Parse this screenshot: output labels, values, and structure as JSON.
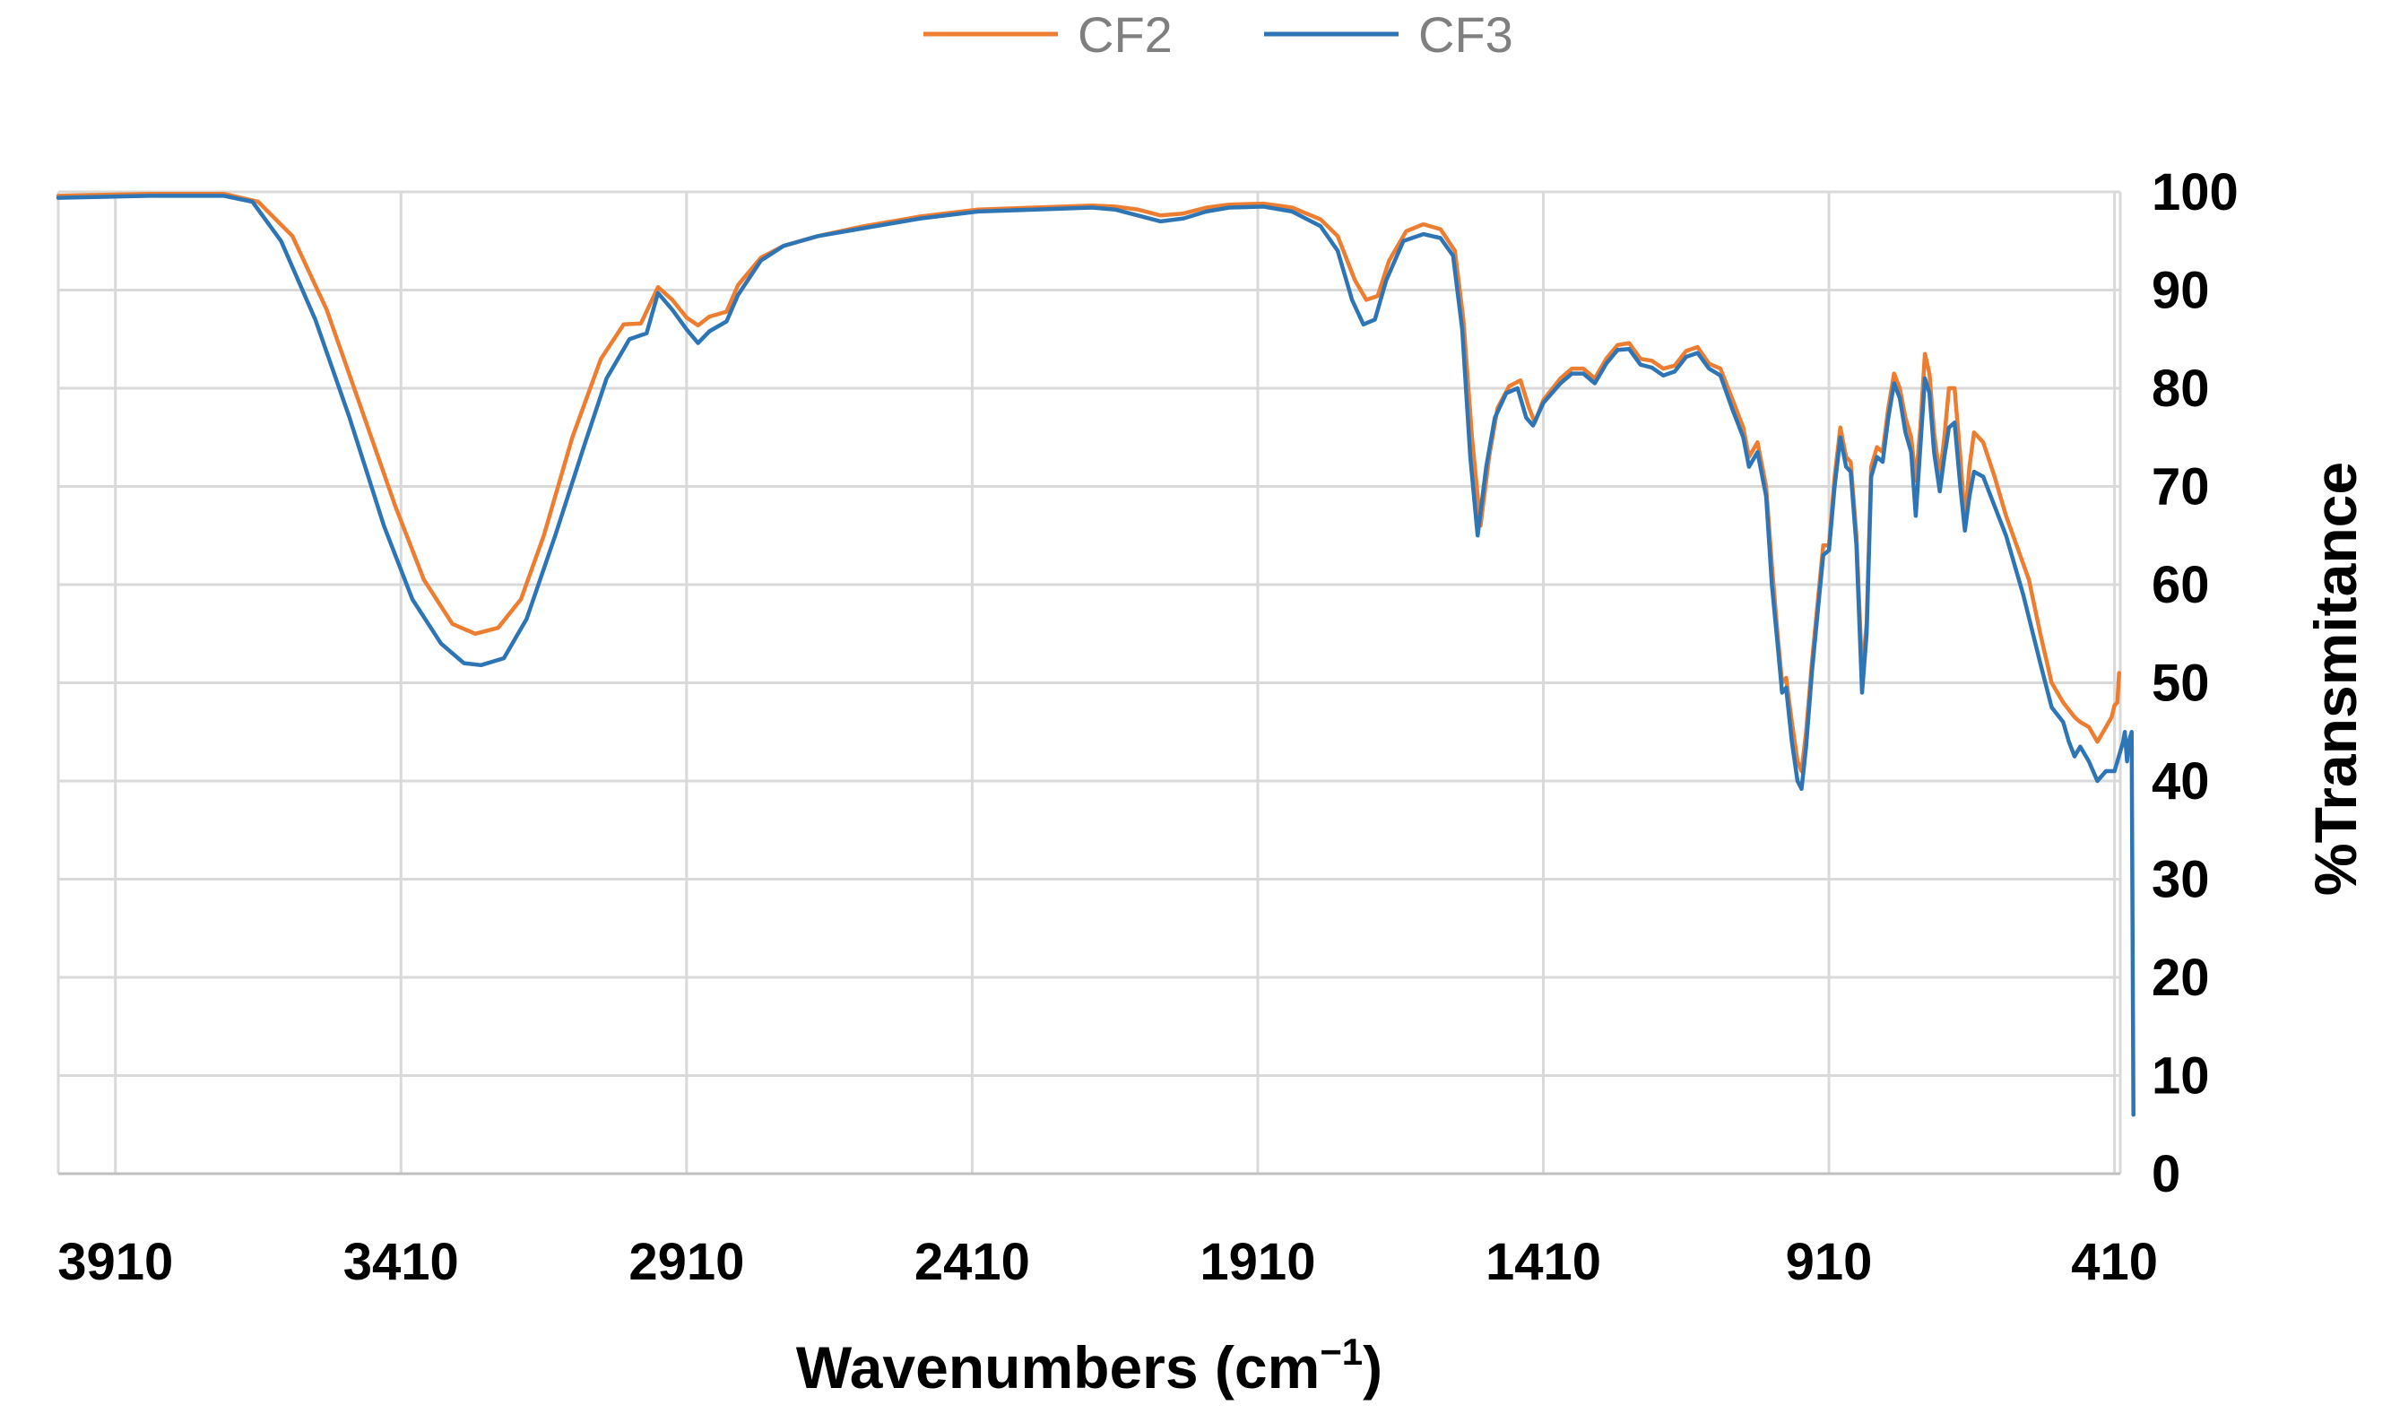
{
  "chart_data": {
    "type": "line",
    "title": "",
    "xlabel": "Wavenumbers (cm",
    "xlabel_sup": "−1",
    "xlabel_close": ")",
    "ylabel": "%Transmitance",
    "xlim": [
      4010,
      400
    ],
    "x_reversed": true,
    "ylim": [
      0,
      100
    ],
    "grid": true,
    "legend_position": "top",
    "x_ticks": [
      3910,
      3410,
      2910,
      2410,
      1910,
      1410,
      910,
      410
    ],
    "y_ticks": [
      0,
      10,
      20,
      30,
      40,
      50,
      60,
      70,
      80,
      90,
      100
    ],
    "series": [
      {
        "name": "CF2",
        "color": "#ed7d31",
        "points": [
          [
            4010,
            99.6
          ],
          [
            3850,
            99.8
          ],
          [
            3720,
            99.8
          ],
          [
            3660,
            99.0
          ],
          [
            3600,
            95.5
          ],
          [
            3540,
            88
          ],
          [
            3480,
            78
          ],
          [
            3420,
            68
          ],
          [
            3370,
            60.5
          ],
          [
            3320,
            56
          ],
          [
            3280,
            55
          ],
          [
            3240,
            55.6
          ],
          [
            3200,
            58.5
          ],
          [
            3160,
            65
          ],
          [
            3110,
            75
          ],
          [
            3060,
            83
          ],
          [
            3020,
            86.5
          ],
          [
            2990,
            86.6
          ],
          [
            2960,
            90.3
          ],
          [
            2935,
            89
          ],
          [
            2910,
            87.2
          ],
          [
            2890,
            86.4
          ],
          [
            2870,
            87.3
          ],
          [
            2840,
            87.8
          ],
          [
            2820,
            90.5
          ],
          [
            2780,
            93.3
          ],
          [
            2740,
            94.5
          ],
          [
            2680,
            95.5
          ],
          [
            2600,
            96.5
          ],
          [
            2500,
            97.5
          ],
          [
            2400,
            98.2
          ],
          [
            2300,
            98.4
          ],
          [
            2200,
            98.6
          ],
          [
            2160,
            98.5
          ],
          [
            2120,
            98.2
          ],
          [
            2080,
            97.6
          ],
          [
            2040,
            97.8
          ],
          [
            2000,
            98.4
          ],
          [
            1960,
            98.7
          ],
          [
            1900,
            98.8
          ],
          [
            1850,
            98.4
          ],
          [
            1800,
            97.2
          ],
          [
            1770,
            95.5
          ],
          [
            1740,
            91
          ],
          [
            1720,
            89
          ],
          [
            1700,
            89.4
          ],
          [
            1680,
            93
          ],
          [
            1650,
            96
          ],
          [
            1620,
            96.7
          ],
          [
            1590,
            96.2
          ],
          [
            1565,
            94
          ],
          [
            1550,
            87
          ],
          [
            1535,
            75
          ],
          [
            1520,
            66
          ],
          [
            1505,
            73
          ],
          [
            1490,
            78
          ],
          [
            1470,
            80.2
          ],
          [
            1450,
            80.8
          ],
          [
            1435,
            78
          ],
          [
            1425,
            76.5
          ],
          [
            1410,
            78.8
          ],
          [
            1380,
            81
          ],
          [
            1360,
            82
          ],
          [
            1340,
            82
          ],
          [
            1320,
            81
          ],
          [
            1300,
            83
          ],
          [
            1280,
            84.4
          ],
          [
            1260,
            84.6
          ],
          [
            1240,
            83
          ],
          [
            1220,
            82.8
          ],
          [
            1200,
            82
          ],
          [
            1180,
            82.3
          ],
          [
            1160,
            83.8
          ],
          [
            1140,
            84.2
          ],
          [
            1120,
            82.5
          ],
          [
            1100,
            82
          ],
          [
            1080,
            79
          ],
          [
            1060,
            76
          ],
          [
            1050,
            73
          ],
          [
            1035,
            74.5
          ],
          [
            1020,
            70
          ],
          [
            1010,
            62
          ],
          [
            1000,
            55
          ],
          [
            992,
            50
          ],
          [
            985,
            50.5
          ],
          [
            975,
            46
          ],
          [
            965,
            42
          ],
          [
            958,
            41
          ],
          [
            950,
            45
          ],
          [
            940,
            52
          ],
          [
            930,
            58
          ],
          [
            920,
            64
          ],
          [
            910,
            64
          ],
          [
            900,
            71
          ],
          [
            890,
            76
          ],
          [
            880,
            73
          ],
          [
            872,
            72.5
          ],
          [
            862,
            65
          ],
          [
            852,
            51
          ],
          [
            844,
            56
          ],
          [
            836,
            72
          ],
          [
            826,
            74
          ],
          [
            816,
            73.5
          ],
          [
            806,
            78
          ],
          [
            796,
            81.5
          ],
          [
            786,
            80
          ],
          [
            776,
            77
          ],
          [
            766,
            75
          ],
          [
            758,
            70.6
          ],
          [
            750,
            76
          ],
          [
            742,
            83.5
          ],
          [
            734,
            81.5
          ],
          [
            726,
            75.5
          ],
          [
            716,
            71
          ],
          [
            708,
            75
          ],
          [
            700,
            80
          ],
          [
            690,
            80
          ],
          [
            680,
            73
          ],
          [
            672,
            66.5
          ],
          [
            664,
            72
          ],
          [
            656,
            75.5
          ],
          [
            640,
            74.5
          ],
          [
            620,
            71
          ],
          [
            600,
            67
          ],
          [
            560,
            60.5
          ],
          [
            540,
            55
          ],
          [
            520,
            50
          ],
          [
            500,
            48
          ],
          [
            480,
            46.5
          ],
          [
            470,
            46
          ],
          [
            455,
            45.5
          ],
          [
            440,
            44
          ],
          [
            425,
            45.5
          ],
          [
            415,
            46.5
          ],
          [
            410,
            47.7
          ],
          [
            405,
            48
          ],
          [
            402,
            51
          ]
        ]
      },
      {
        "name": "CF3",
        "color": "#2e75b6",
        "points": [
          [
            4010,
            99.4
          ],
          [
            3850,
            99.6
          ],
          [
            3720,
            99.6
          ],
          [
            3670,
            99
          ],
          [
            3620,
            95
          ],
          [
            3560,
            87
          ],
          [
            3500,
            77
          ],
          [
            3440,
            66
          ],
          [
            3390,
            58.5
          ],
          [
            3340,
            54
          ],
          [
            3300,
            52
          ],
          [
            3270,
            51.8
          ],
          [
            3230,
            52.5
          ],
          [
            3190,
            56.5
          ],
          [
            3140,
            65
          ],
          [
            3090,
            74
          ],
          [
            3050,
            81
          ],
          [
            3010,
            85
          ],
          [
            2980,
            85.6
          ],
          [
            2960,
            89.7
          ],
          [
            2935,
            88
          ],
          [
            2910,
            86
          ],
          [
            2890,
            84.6
          ],
          [
            2870,
            85.8
          ],
          [
            2840,
            86.8
          ],
          [
            2820,
            89.5
          ],
          [
            2780,
            93
          ],
          [
            2740,
            94.5
          ],
          [
            2680,
            95.5
          ],
          [
            2600,
            96.3
          ],
          [
            2500,
            97.3
          ],
          [
            2400,
            98.0
          ],
          [
            2300,
            98.2
          ],
          [
            2200,
            98.4
          ],
          [
            2160,
            98.2
          ],
          [
            2120,
            97.6
          ],
          [
            2080,
            97.0
          ],
          [
            2040,
            97.3
          ],
          [
            2000,
            98.0
          ],
          [
            1960,
            98.4
          ],
          [
            1900,
            98.5
          ],
          [
            1850,
            98
          ],
          [
            1800,
            96.5
          ],
          [
            1770,
            94
          ],
          [
            1745,
            89
          ],
          [
            1725,
            86.5
          ],
          [
            1705,
            87
          ],
          [
            1685,
            91
          ],
          [
            1655,
            95
          ],
          [
            1620,
            95.7
          ],
          [
            1590,
            95.3
          ],
          [
            1568,
            93.5
          ],
          [
            1552,
            86
          ],
          [
            1538,
            73
          ],
          [
            1525,
            65
          ],
          [
            1510,
            72
          ],
          [
            1495,
            77
          ],
          [
            1475,
            79.5
          ],
          [
            1455,
            80
          ],
          [
            1440,
            77
          ],
          [
            1428,
            76.2
          ],
          [
            1410,
            78.5
          ],
          [
            1380,
            80.5
          ],
          [
            1360,
            81.5
          ],
          [
            1340,
            81.5
          ],
          [
            1320,
            80.5
          ],
          [
            1300,
            82.5
          ],
          [
            1280,
            83.9
          ],
          [
            1260,
            84
          ],
          [
            1240,
            82.4
          ],
          [
            1220,
            82.1
          ],
          [
            1200,
            81.3
          ],
          [
            1180,
            81.7
          ],
          [
            1160,
            83.2
          ],
          [
            1140,
            83.6
          ],
          [
            1120,
            82
          ],
          [
            1100,
            81.3
          ],
          [
            1080,
            78
          ],
          [
            1060,
            75
          ],
          [
            1050,
            72
          ],
          [
            1035,
            73.5
          ],
          [
            1020,
            69
          ],
          [
            1010,
            60
          ],
          [
            1000,
            54
          ],
          [
            992,
            49
          ],
          [
            985,
            49.5
          ],
          [
            975,
            44
          ],
          [
            965,
            40
          ],
          [
            958,
            39.2
          ],
          [
            950,
            43.5
          ],
          [
            940,
            51
          ],
          [
            930,
            57
          ],
          [
            920,
            63
          ],
          [
            910,
            63.5
          ],
          [
            900,
            70
          ],
          [
            890,
            75
          ],
          [
            880,
            72
          ],
          [
            872,
            71.5
          ],
          [
            862,
            64
          ],
          [
            852,
            49
          ],
          [
            844,
            55
          ],
          [
            836,
            71
          ],
          [
            826,
            73
          ],
          [
            816,
            72.5
          ],
          [
            806,
            77
          ],
          [
            796,
            80.5
          ],
          [
            786,
            79
          ],
          [
            776,
            75.5
          ],
          [
            766,
            73.5
          ],
          [
            758,
            67
          ],
          [
            750,
            74
          ],
          [
            742,
            81
          ],
          [
            734,
            79.5
          ],
          [
            726,
            73.5
          ],
          [
            716,
            69.5
          ],
          [
            708,
            73
          ],
          [
            700,
            76
          ],
          [
            690,
            76.5
          ],
          [
            680,
            70
          ],
          [
            672,
            65.5
          ],
          [
            664,
            69
          ],
          [
            656,
            71.5
          ],
          [
            640,
            71
          ],
          [
            620,
            68
          ],
          [
            600,
            65
          ],
          [
            570,
            59
          ],
          [
            540,
            52
          ],
          [
            520,
            47.5
          ],
          [
            500,
            46
          ],
          [
            490,
            44
          ],
          [
            480,
            42.5
          ],
          [
            470,
            43.5
          ],
          [
            455,
            42
          ],
          [
            440,
            40
          ],
          [
            425,
            41
          ],
          [
            410,
            41
          ],
          [
            400,
            43
          ],
          [
            395,
            44
          ],
          [
            392,
            45
          ],
          [
            388,
            42
          ],
          [
            385,
            44
          ],
          [
            380,
            45
          ],
          [
            377,
            6
          ]
        ]
      }
    ]
  }
}
